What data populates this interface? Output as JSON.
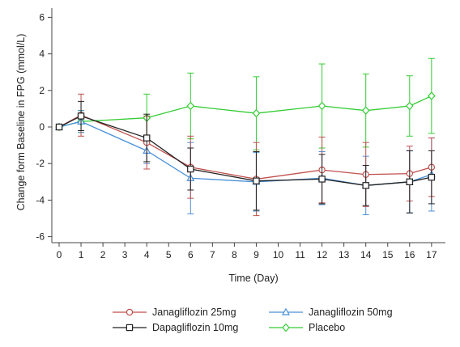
{
  "chart_data": {
    "type": "line",
    "title": "",
    "xlabel": "Time (Day)",
    "ylabel": "Change form Baseline in FPG (mmol/L)",
    "xlim": [
      0,
      17.6
    ],
    "ylim": [
      -6.4,
      6.4
    ],
    "xticks": [
      0,
      1,
      2,
      3,
      4,
      5,
      6,
      7,
      8,
      9,
      10,
      11,
      12,
      13,
      14,
      15,
      16,
      17
    ],
    "yticks": [
      -6,
      -4,
      -2,
      0,
      2,
      4,
      6
    ],
    "grid": false,
    "legend_position": "bottom",
    "series": [
      {
        "name": "Janagliflozin 25mg",
        "color": "#c0504d",
        "marker": "circle",
        "x": [
          0,
          1,
          4,
          6,
          9,
          12,
          14,
          16,
          17
        ],
        "y": [
          0,
          0.65,
          -0.85,
          -2.2,
          -2.85,
          -2.35,
          -2.6,
          -2.55,
          -2.2
        ],
        "err": [
          0,
          1.15,
          1.45,
          1.7,
          2.0,
          1.8,
          1.75,
          1.5,
          1.6
        ]
      },
      {
        "name": "Janagliflozin 50mg",
        "color": "#4a90d9",
        "marker": "triangle",
        "x": [
          0,
          1,
          4,
          6,
          9,
          12,
          14,
          16,
          17
        ],
        "y": [
          0,
          0.3,
          -1.3,
          -2.8,
          -3.0,
          -2.8,
          -3.2,
          -3.0,
          -2.6
        ],
        "err": [
          0,
          0.6,
          0.7,
          1.95,
          1.6,
          1.45,
          1.6,
          1.7,
          2.0
        ]
      },
      {
        "name": "Dapagliflozin 10mg",
        "color": "#222222",
        "marker": "square",
        "x": [
          0,
          1,
          4,
          6,
          9,
          12,
          14,
          16,
          17
        ],
        "y": [
          0,
          0.6,
          -0.6,
          -2.3,
          -2.95,
          -2.85,
          -3.2,
          -3.0,
          -2.75
        ],
        "err": [
          0,
          0.8,
          1.3,
          1.15,
          1.6,
          1.35,
          1.1,
          1.7,
          1.45
        ]
      },
      {
        "name": "Placebo",
        "color": "#33cc33",
        "marker": "diamond",
        "x": [
          0,
          1,
          4,
          6,
          9,
          12,
          14,
          16,
          17
        ],
        "y": [
          0,
          0.3,
          0.5,
          1.15,
          0.75,
          1.15,
          0.9,
          1.15,
          1.7
        ],
        "err": [
          0,
          0.6,
          1.3,
          1.8,
          2.0,
          2.3,
          2.0,
          1.65,
          2.05
        ]
      }
    ]
  }
}
